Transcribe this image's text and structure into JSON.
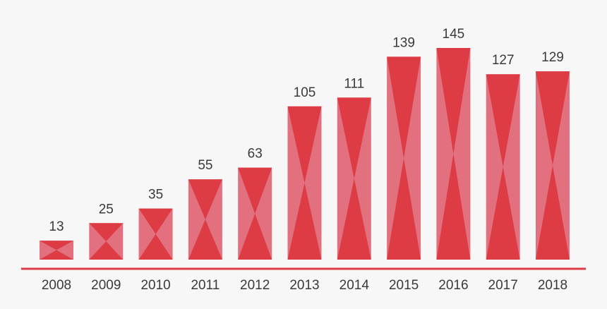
{
  "chart_data": {
    "type": "bar",
    "categories": [
      "2008",
      "2009",
      "2010",
      "2011",
      "2012",
      "2013",
      "2014",
      "2015",
      "2016",
      "2017",
      "2018"
    ],
    "values": [
      13,
      25,
      35,
      55,
      63,
      105,
      111,
      139,
      145,
      127,
      129
    ],
    "value_labels": [
      "13",
      "25",
      "35",
      "55",
      "63",
      "105",
      "111",
      "139",
      "145",
      "127",
      "129"
    ],
    "title": "",
    "xlabel": "",
    "ylabel": "",
    "ylim": [
      0,
      145
    ],
    "grid": false,
    "legend": "none",
    "colors": {
      "bar_light": "#e2707f",
      "bar_dark": "#dd3c44",
      "axis": "#dd3c44",
      "text": "#3a3a3a",
      "background": "#f7f7f7"
    }
  }
}
